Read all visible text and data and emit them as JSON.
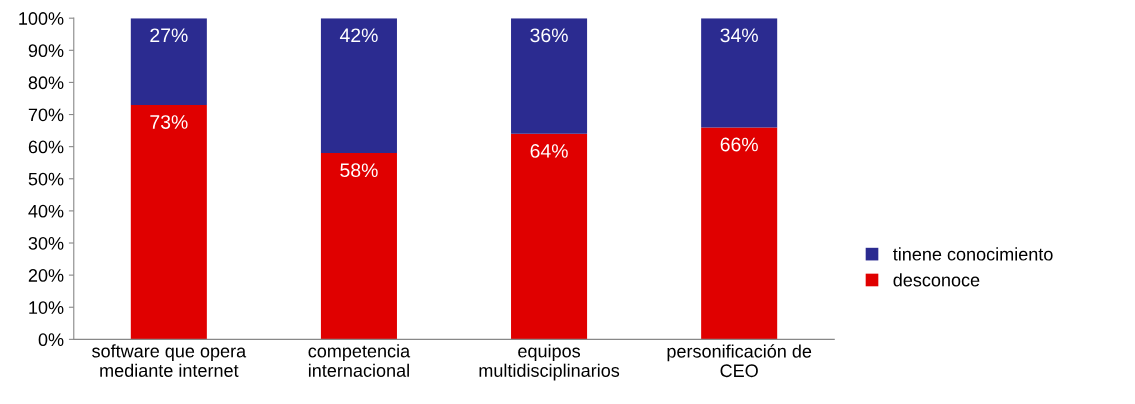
{
  "chart_data": {
    "type": "bar",
    "stacked": true,
    "categories": [
      "software que opera\nmediante internet",
      "competencia\ninternacional",
      "equipos\nmultidisciplinarios",
      "personificación de\nCEO"
    ],
    "series": [
      {
        "name": "desconoce",
        "color": "#e00000",
        "values": [
          73,
          58,
          64,
          66
        ],
        "value_labels": [
          "73%",
          "58%",
          "64%",
          "66%"
        ]
      },
      {
        "name": "tinene conocimiento",
        "color": "#2b2b90",
        "values": [
          27,
          42,
          36,
          34
        ],
        "value_labels": [
          "27%",
          "42%",
          "36%",
          "34%"
        ]
      }
    ],
    "ylim": [
      0,
      100
    ],
    "yticks": [
      {
        "value": 0,
        "label": "0%"
      },
      {
        "value": 10,
        "label": "10%"
      },
      {
        "value": 20,
        "label": "20%"
      },
      {
        "value": 30,
        "label": "30%"
      },
      {
        "value": 40,
        "label": "40%"
      },
      {
        "value": 50,
        "label": "50%"
      },
      {
        "value": 60,
        "label": "60%"
      },
      {
        "value": 70,
        "label": "70%"
      },
      {
        "value": 80,
        "label": "80%"
      },
      {
        "value": 90,
        "label": "90%"
      },
      {
        "value": 100,
        "label": "100%"
      }
    ],
    "legend": "right",
    "grid": false
  }
}
